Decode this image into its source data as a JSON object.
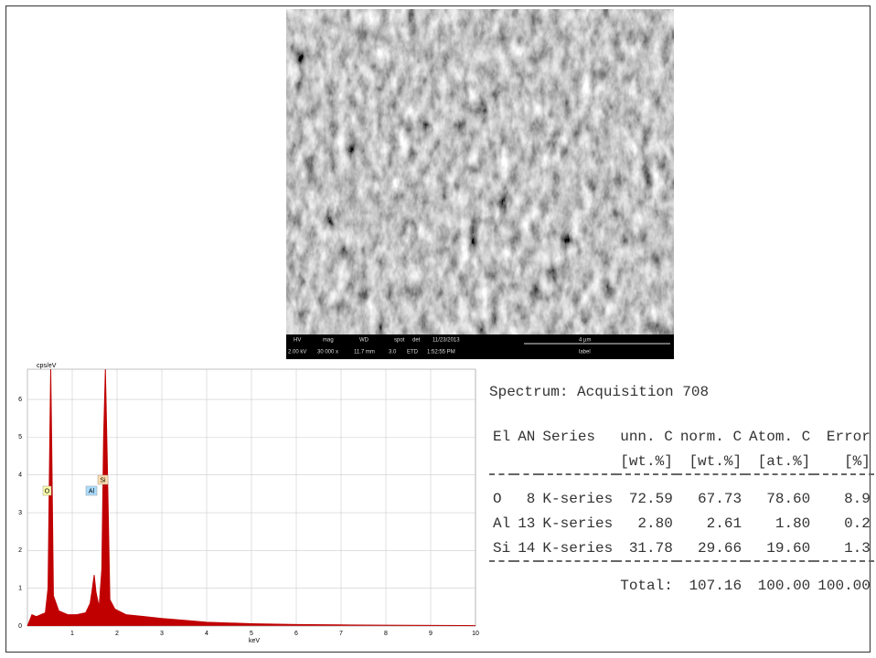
{
  "sem": {
    "info_bar": {
      "headers": [
        "HV",
        "mag",
        "WD",
        "spot",
        "det",
        "11/23/2013",
        "4 µm"
      ],
      "values": [
        "2.00 kV",
        "30 000 x",
        "11.7 mm",
        "3.0",
        "ETD",
        "1:52:55 PM",
        "label"
      ]
    }
  },
  "spectrum": {
    "y_label": "cps/eV",
    "x_label": "keV",
    "xlim": [
      0,
      10
    ],
    "ylim": [
      0,
      6.8
    ],
    "xticks": [
      1,
      2,
      3,
      4,
      5,
      6,
      7,
      8,
      9,
      10
    ],
    "yticks": [
      0,
      1,
      2,
      3,
      4,
      5,
      6
    ],
    "color": "#c00000",
    "grid": true,
    "energy": [
      0,
      0.1,
      0.2,
      0.3,
      0.4,
      0.46,
      0.5,
      0.52,
      0.54,
      0.58,
      0.7,
      0.9,
      1.1,
      1.3,
      1.4,
      1.45,
      1.49,
      1.53,
      1.6,
      1.66,
      1.7,
      1.74,
      1.78,
      1.84,
      1.95,
      2.2,
      2.6,
      3,
      3.5,
      4,
      5,
      6,
      7,
      8,
      10
    ],
    "counts": [
      0,
      0.3,
      0.25,
      0.3,
      0.35,
      1,
      5,
      6.8,
      5,
      0.8,
      0.4,
      0.3,
      0.3,
      0.35,
      0.6,
      1.0,
      1.35,
      0.9,
      0.5,
      1.5,
      5,
      6.8,
      4.5,
      0.7,
      0.45,
      0.3,
      0.25,
      0.2,
      0.15,
      0.1,
      0.06,
      0.04,
      0.03,
      0.02,
      0.01
    ],
    "peak_labels": [
      "O",
      "Al",
      "Si"
    ]
  },
  "table": {
    "title": "Spectrum: Acquisition 708",
    "header": [
      "El",
      "AN",
      "Series",
      "unn. C",
      "norm. C",
      "Atom. C",
      "Error"
    ],
    "units": [
      "[wt.%]",
      "[wt.%]",
      "[at.%]",
      "[%]"
    ],
    "rows": [
      [
        "O",
        "8",
        "K-series",
        "72.59",
        "67.73",
        "78.60",
        "8.9"
      ],
      [
        "Al",
        "13",
        "K-series",
        "2.80",
        "2.61",
        "1.80",
        "0.2"
      ],
      [
        "Si",
        "14",
        "K-series",
        "31.78",
        "29.66",
        "19.60",
        "1.3"
      ]
    ],
    "total": [
      "Total:",
      "107.16",
      "100.00",
      "100.00"
    ]
  }
}
